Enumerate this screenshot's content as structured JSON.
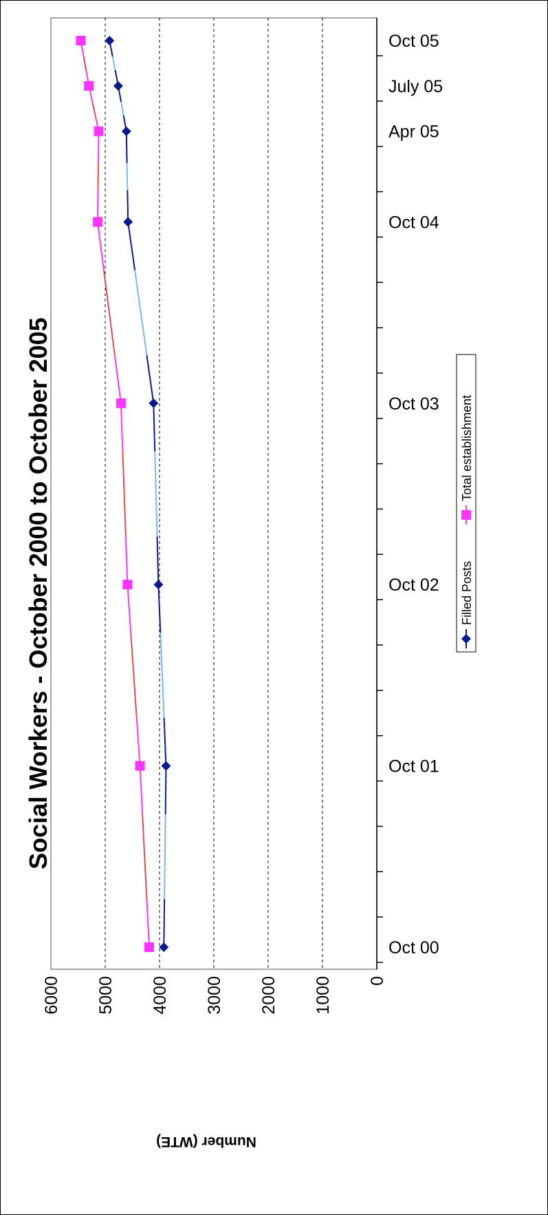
{
  "chart_data": {
    "type": "line",
    "title": "Social Workers - October 2000 to October 2005",
    "ylabel": "Number (WTE)",
    "xlabel": "",
    "ylim": [
      0,
      6000
    ],
    "yticks": [
      0,
      1000,
      2000,
      3000,
      4000,
      5000,
      6000
    ],
    "x_tick_labels": [
      "Oct 00",
      "Oct 01",
      "Oct 02",
      "Oct 03",
      "Oct 04",
      "Apr 05",
      "July 05",
      "Oct 05"
    ],
    "x_tick_positions": [
      "2000-10",
      "2001-10",
      "2002-10",
      "2003-10",
      "2004-10",
      "2005-04",
      "2005-07",
      "2005-10"
    ],
    "grid": "major y gridlines, dashed",
    "legend_position": "bottom-right",
    "series": [
      {
        "name": "Filled Posts",
        "color": "#0a1a8c",
        "interp_color": "#7ab8ee",
        "marker": "diamond",
        "x": [
          "2000-10",
          "2001-10",
          "2002-10",
          "2003-10",
          "2004-10",
          "2005-04",
          "2005-07",
          "2005-10"
        ],
        "values": [
          3920,
          3880,
          4020,
          4110,
          4580,
          4610,
          4760,
          4920
        ]
      },
      {
        "name": "Total establishment",
        "color": "#ff33ff",
        "interp_color": "#e24b4b",
        "marker": "square",
        "x": [
          "2000-10",
          "2001-10",
          "2002-10",
          "2003-10",
          "2004-10",
          "2005-04",
          "2005-07",
          "2005-10"
        ],
        "values": [
          4190,
          4360,
          4590,
          4710,
          5140,
          5120,
          5300,
          5450
        ]
      }
    ]
  }
}
